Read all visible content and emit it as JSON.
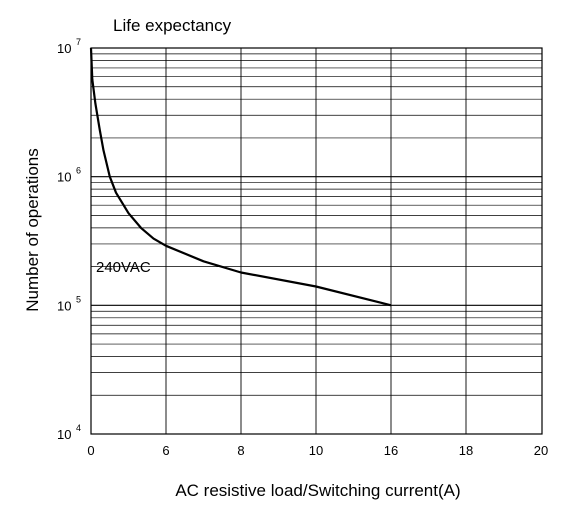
{
  "chart_data": {
    "type": "line",
    "title": "Life expectancy",
    "xlabel": "AC resistive load/Switching current(A)",
    "ylabel": "Number of operations",
    "x_tick_labels": [
      "0",
      "6",
      "8",
      "10",
      "16",
      "18",
      "20"
    ],
    "y_tick_labels": [
      {
        "base": "10",
        "exp": "4"
      },
      {
        "base": "10",
        "exp": "5"
      },
      {
        "base": "10",
        "exp": "6"
      },
      {
        "base": "10",
        "exp": "7"
      }
    ],
    "y_scale": "log",
    "ylim": [
      10000,
      10000000
    ],
    "grid": true,
    "series": [
      {
        "name": "240VAC",
        "points": [
          {
            "x": 0,
            "y": 10000000
          },
          {
            "x": 0.1,
            "y": 5700000
          },
          {
            "x": 0.35,
            "y": 3700000
          },
          {
            "x": 0.7,
            "y": 2300000
          },
          {
            "x": 1.0,
            "y": 1600000
          },
          {
            "x": 1.5,
            "y": 1000000
          },
          {
            "x": 2.0,
            "y": 750000
          },
          {
            "x": 3.0,
            "y": 520000
          },
          {
            "x": 4.0,
            "y": 400000
          },
          {
            "x": 5.0,
            "y": 330000
          },
          {
            "x": 6.0,
            "y": 290000
          },
          {
            "x": 7.0,
            "y": 220000
          },
          {
            "x": 8.0,
            "y": 180000
          },
          {
            "x": 10.0,
            "y": 140000
          },
          {
            "x": 16.0,
            "y": 100000
          }
        ]
      }
    ]
  }
}
